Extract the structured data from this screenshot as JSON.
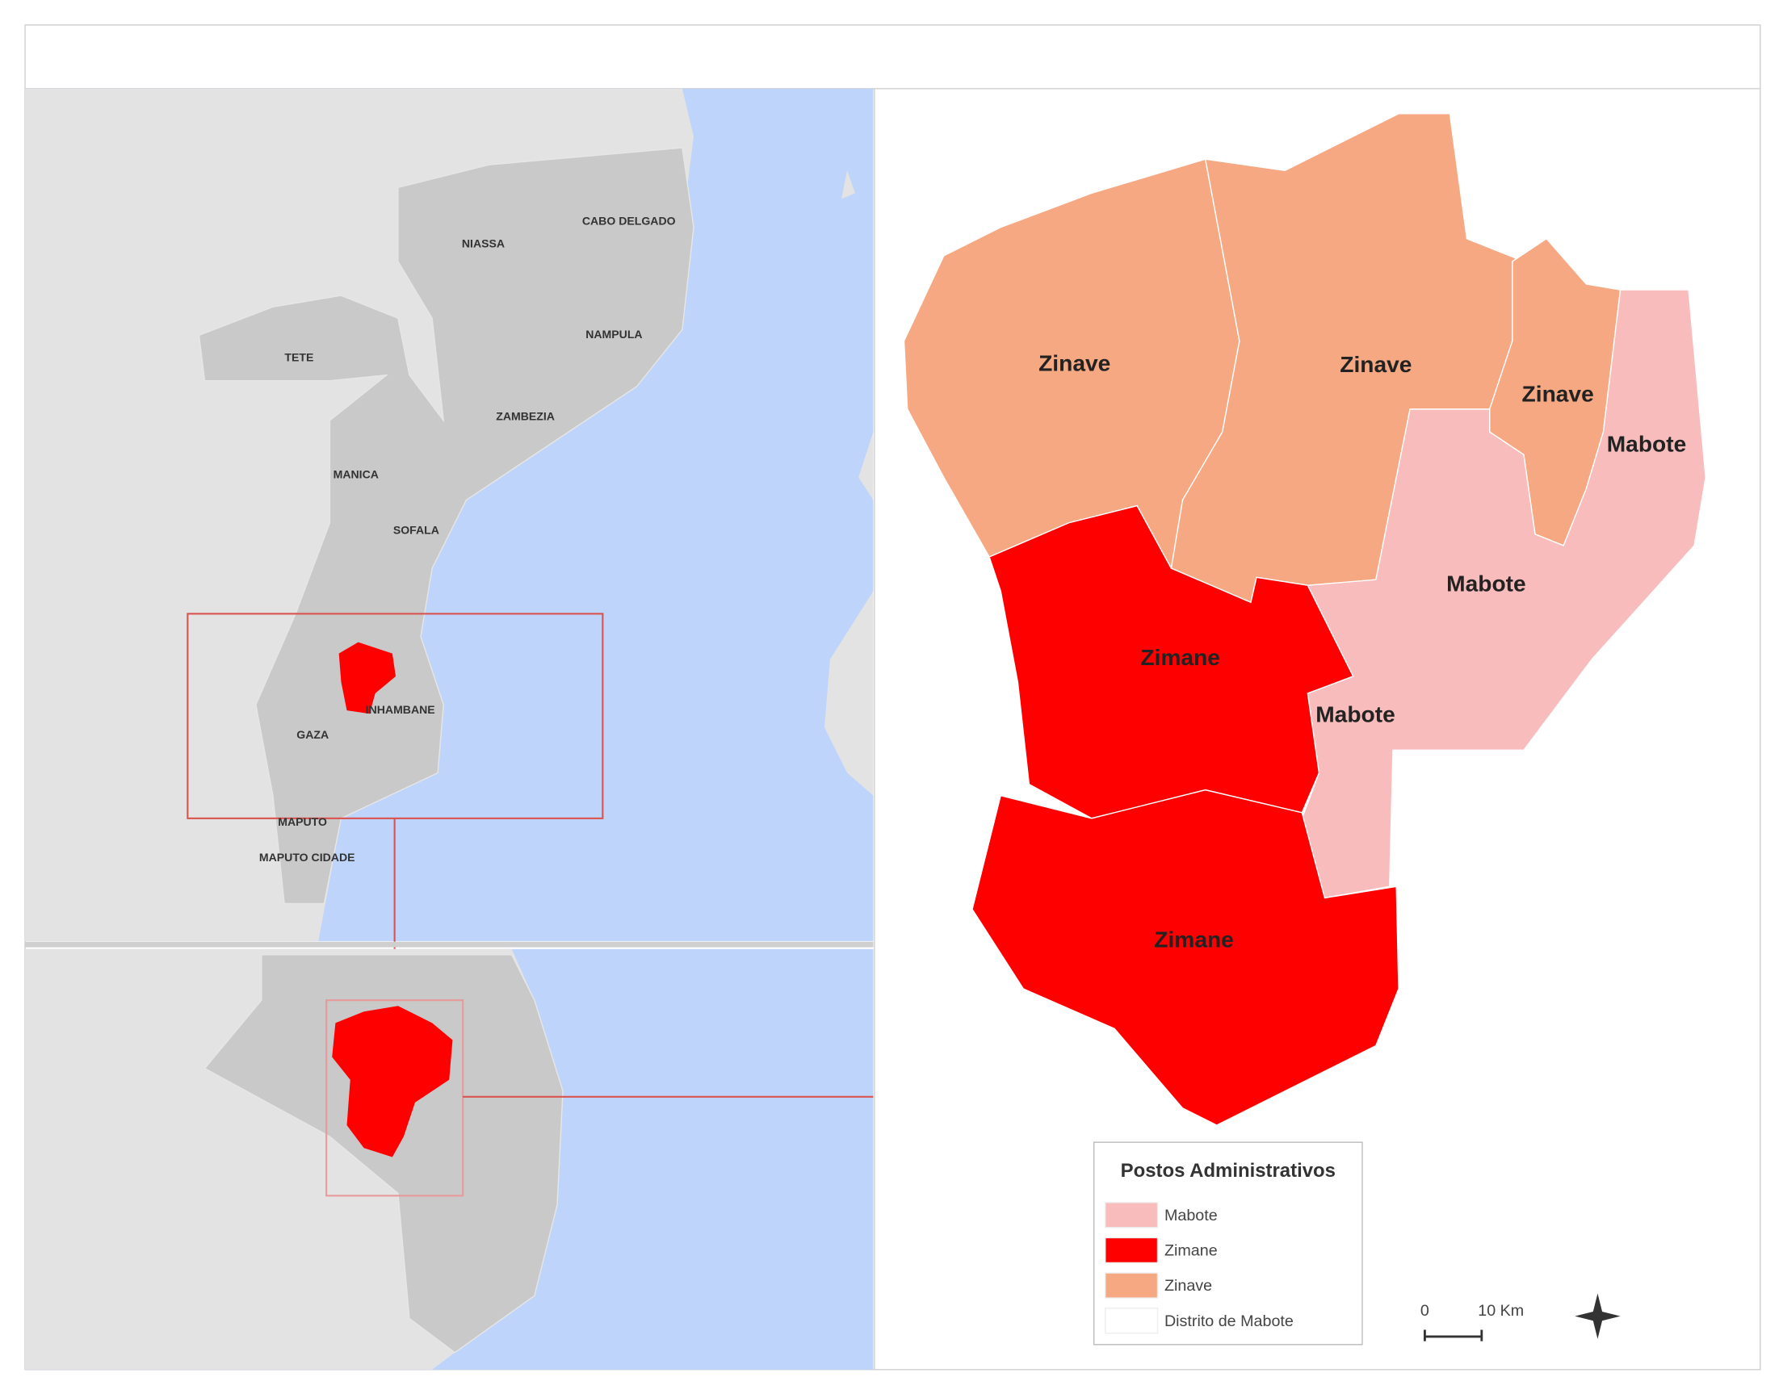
{
  "overview_map": {
    "province_labels": [
      "NIASSA",
      "CABO DELGADO",
      "TETE",
      "NAMPULA",
      "ZAMBEZIA",
      "MANICA",
      "SOFALA",
      "INHAMBANE",
      "GAZA",
      "MAPUTO",
      "MAPUTO CIDADE"
    ]
  },
  "district_map": {
    "labels": [
      "Zinave",
      "Zinave",
      "Zinave",
      "Mabote",
      "Mabote",
      "Mabote",
      "Zimane",
      "Zimane"
    ]
  },
  "legend": {
    "title": "Postos Administrativos",
    "items": [
      {
        "label": "Mabote",
        "color": "#f9bcbc"
      },
      {
        "label": "Zimane",
        "color": "#ff0000"
      },
      {
        "label": "Zinave",
        "color": "#f5a882"
      },
      {
        "label": "Distrito de Mabote",
        "color": "#ffffff"
      }
    ]
  },
  "scale_bar": {
    "labels": [
      "0",
      "10 Km"
    ]
  }
}
